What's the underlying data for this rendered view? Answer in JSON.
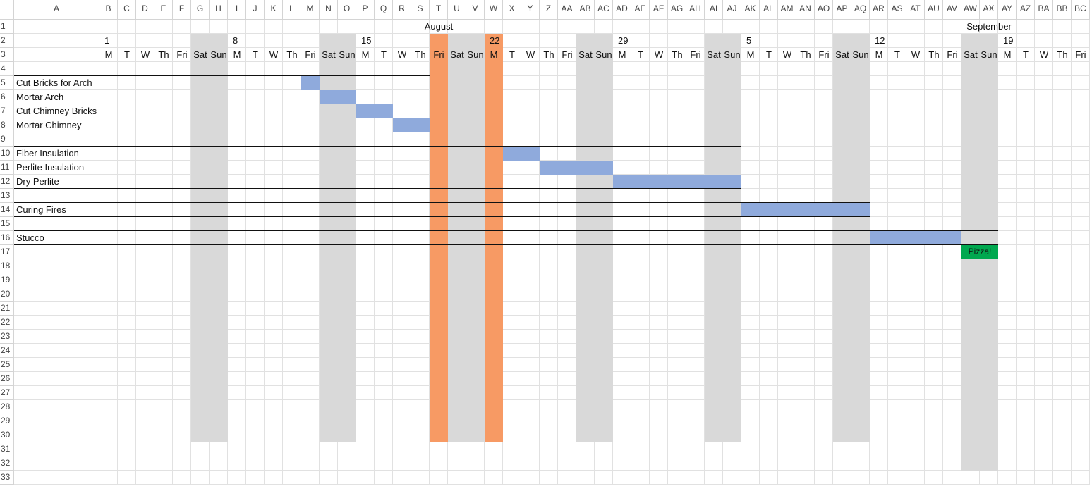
{
  "app": {
    "name": "Spreadsheet"
  },
  "columns": [
    "A",
    "B",
    "C",
    "D",
    "E",
    "F",
    "G",
    "H",
    "I",
    "J",
    "K",
    "L",
    "M",
    "N",
    "O",
    "P",
    "Q",
    "R",
    "S",
    "T",
    "U",
    "V",
    "W",
    "X",
    "Y",
    "Z",
    "AA",
    "AB",
    "AC",
    "AD",
    "AE",
    "AF",
    "AG",
    "AH",
    "AI",
    "AJ",
    "AK",
    "AL",
    "AM",
    "AN",
    "AO",
    "AP",
    "AQ",
    "AR",
    "AS",
    "AT",
    "AU",
    "AV",
    "AW",
    "AX",
    "AY",
    "AZ",
    "BA",
    "BB",
    "BC"
  ],
  "rows": [
    "1",
    "2",
    "3",
    "4",
    "5",
    "6",
    "7",
    "8",
    "9",
    "10",
    "11",
    "12",
    "13",
    "14",
    "15",
    "16",
    "17",
    "18",
    "19",
    "20",
    "21",
    "22",
    "23",
    "24",
    "25",
    "26",
    "27",
    "28",
    "29",
    "30",
    "31",
    "32",
    "33"
  ],
  "months": [
    {
      "label": "August",
      "col": "T"
    },
    {
      "label": "September",
      "col": "AX"
    }
  ],
  "week_starts": [
    {
      "label": "1",
      "col": "B"
    },
    {
      "label": "8",
      "col": "I"
    },
    {
      "label": "15",
      "col": "P"
    },
    {
      "label": "22",
      "col": "W"
    },
    {
      "label": "29",
      "col": "AD"
    },
    {
      "label": "5",
      "col": "AK"
    },
    {
      "label": "12",
      "col": "AR"
    },
    {
      "label": "19",
      "col": "AY"
    }
  ],
  "day_labels": [
    "M",
    "T",
    "W",
    "Th",
    "Fri",
    "Sat",
    "Sun",
    "M",
    "T",
    "W",
    "Th",
    "Fri",
    "Sat",
    "Sun",
    "M",
    "T",
    "W",
    "Th",
    "Fri",
    "Sat",
    "Sun",
    "M",
    "T",
    "W",
    "Th",
    "Fri",
    "Sat",
    "Sun",
    "M",
    "T",
    "W",
    "Th",
    "Fri",
    "Sat",
    "Sun",
    "M",
    "T",
    "W",
    "Th",
    "Fri",
    "Sat",
    "Sun",
    "M",
    "T",
    "W",
    "Th",
    "Fri",
    "Sat",
    "Sun",
    "M",
    "T",
    "W",
    "Th",
    "Fri"
  ],
  "tasks": [
    {
      "row": 5,
      "label": "Cut Bricks for Arch",
      "start": "M",
      "end": "M"
    },
    {
      "row": 6,
      "label": "Mortar Arch",
      "start": "N",
      "end": "O"
    },
    {
      "row": 7,
      "label": "Cut Chimney Bricks",
      "start": "P",
      "end": "Q"
    },
    {
      "row": 8,
      "label": "Mortar Chimney",
      "start": "R",
      "end": "S"
    },
    {
      "row": 10,
      "label": "Fiber Insulation",
      "start": "X",
      "end": "Y"
    },
    {
      "row": 11,
      "label": "Perlite Insulation",
      "start": "Z",
      "end": "AC"
    },
    {
      "row": 12,
      "label": "Dry Perlite",
      "start": "AD",
      "end": "AJ"
    },
    {
      "row": 14,
      "label": "Curing Fires",
      "start": "AK",
      "end": "AQ"
    },
    {
      "row": 16,
      "label": "Stucco",
      "start": "AR",
      "end": "AV"
    }
  ],
  "milestone": {
    "row": 17,
    "label": "Pizza!",
    "start": "AW",
    "end": "AX"
  },
  "highlight_days": [
    {
      "col": "T",
      "label": "Fri"
    },
    {
      "col": "W",
      "label": "M"
    }
  ],
  "highlight_week_number": {
    "col": "W",
    "label": "22"
  },
  "colors": {
    "task_bar": "#8faadc",
    "highlight": "#f79a64",
    "weekend": "#d9d9d9",
    "milestone": "#00a84f",
    "grid": "#e1e1e1"
  }
}
